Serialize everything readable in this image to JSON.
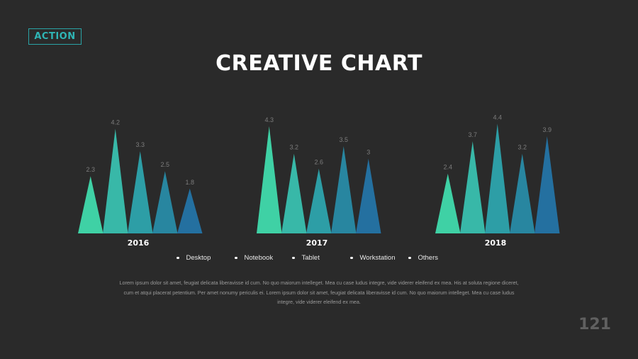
{
  "logo": {
    "text": "ACTION"
  },
  "title": "CREATIVE CHART",
  "colors": {
    "background": "#2a2a2a",
    "series": [
      "#3fd1a5",
      "#38b8a8",
      "#2d9ea6",
      "#2886a0",
      "#2470a0"
    ]
  },
  "chart_data": {
    "type": "bar",
    "style": "triangle",
    "categories": [
      "2016",
      "2017",
      "2018"
    ],
    "series": [
      {
        "name": "Desktop",
        "values": [
          2.3,
          4.3,
          2.4
        ]
      },
      {
        "name": "Notebook",
        "values": [
          4.2,
          3.2,
          3.7
        ]
      },
      {
        "name": "Tablet",
        "values": [
          3.3,
          2.6,
          4.4
        ]
      },
      {
        "name": "Workstation",
        "values": [
          2.5,
          3.5,
          3.2
        ]
      },
      {
        "name": "Others",
        "values": [
          1.8,
          3,
          3.9
        ]
      }
    ],
    "data_labels": true,
    "legend": "bottom",
    "grid": false,
    "ylim": [
      0,
      4.3
    ]
  },
  "body_text": "Lorem ipsum dolor sit amet, feugiat delicata liberavisse id cum. No quo maiorum intelleget. Mea cu case ludus integre, vide viderer eleifend ex mea. His at soluta regione diceret, cum et atqui placerat petentium. Per amet nonumy periculis ei. Lorem ipsum dolor sit amet, feugiat delicata liberavisse id cum. No quo maiorum intelleget. Mea cu case ludus integre, vide viderer eleifend ex mea.",
  "page_number": "121"
}
